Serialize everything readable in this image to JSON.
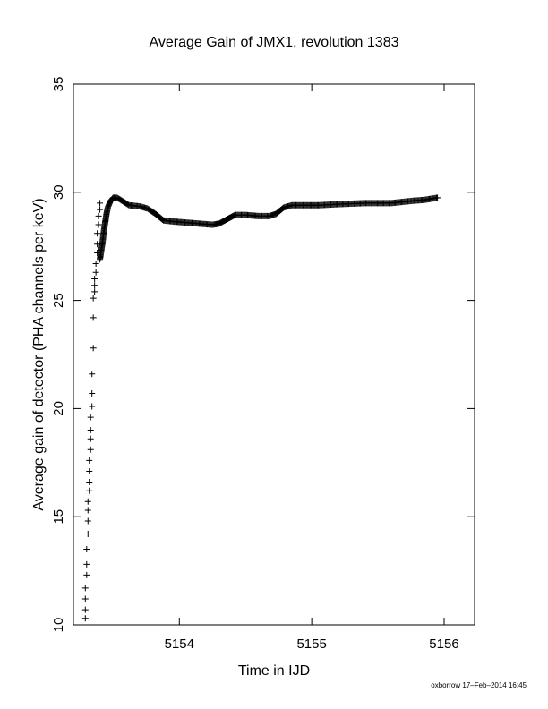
{
  "chart_data": {
    "type": "scatter",
    "title": "Average Gain of JMX1, revolution 1383",
    "xlabel": "Time in IJD",
    "ylabel": "Average gain of detector (PHA channels per keV)",
    "xlim": [
      5153.2,
      5156.23
    ],
    "ylim": [
      10,
      35
    ],
    "xticks": [
      5154,
      5155,
      5156
    ],
    "yticks": [
      10,
      15,
      20,
      25,
      30,
      35
    ],
    "grid": false,
    "marker": "+",
    "color": "#000000",
    "scatter_points": [
      [
        5153.29,
        10.3
      ],
      [
        5153.29,
        10.7
      ],
      [
        5153.29,
        11.2
      ],
      [
        5153.29,
        11.7
      ],
      [
        5153.3,
        12.3
      ],
      [
        5153.3,
        12.8
      ],
      [
        5153.3,
        13.5
      ],
      [
        5153.31,
        14.2
      ],
      [
        5153.31,
        14.8
      ],
      [
        5153.31,
        15.3
      ],
      [
        5153.31,
        15.7
      ],
      [
        5153.32,
        16.2
      ],
      [
        5153.32,
        16.6
      ],
      [
        5153.32,
        17.1
      ],
      [
        5153.32,
        17.6
      ],
      [
        5153.33,
        18.1
      ],
      [
        5153.33,
        18.6
      ],
      [
        5153.33,
        19.0
      ],
      [
        5153.33,
        19.6
      ],
      [
        5153.34,
        20.1
      ],
      [
        5153.34,
        20.7
      ],
      [
        5153.34,
        21.6
      ],
      [
        5153.35,
        22.8
      ],
      [
        5153.35,
        24.2
      ],
      [
        5153.35,
        25.1
      ],
      [
        5153.36,
        25.4
      ],
      [
        5153.36,
        25.7
      ],
      [
        5153.36,
        26.0
      ],
      [
        5153.37,
        26.3
      ],
      [
        5153.37,
        26.7
      ],
      [
        5153.38,
        27.2
      ],
      [
        5153.38,
        27.6
      ],
      [
        5153.38,
        28.1
      ],
      [
        5153.39,
        28.5
      ],
      [
        5153.39,
        28.9
      ],
      [
        5153.4,
        29.2
      ],
      [
        5153.4,
        29.5
      ]
    ],
    "curve_points": [
      [
        5153.4,
        26.9
      ],
      [
        5153.41,
        27.3
      ],
      [
        5153.42,
        27.7
      ],
      [
        5153.43,
        28.2
      ],
      [
        5153.44,
        28.6
      ],
      [
        5153.45,
        29.0
      ],
      [
        5153.46,
        29.3
      ],
      [
        5153.48,
        29.6
      ],
      [
        5153.5,
        29.75
      ],
      [
        5153.53,
        29.75
      ],
      [
        5153.57,
        29.6
      ],
      [
        5153.62,
        29.4
      ],
      [
        5153.7,
        29.35
      ],
      [
        5153.76,
        29.25
      ],
      [
        5153.82,
        29.0
      ],
      [
        5153.88,
        28.7
      ],
      [
        5153.95,
        28.65
      ],
      [
        5154.05,
        28.6
      ],
      [
        5154.15,
        28.55
      ],
      [
        5154.25,
        28.5
      ],
      [
        5154.3,
        28.55
      ],
      [
        5154.36,
        28.75
      ],
      [
        5154.42,
        28.95
      ],
      [
        5154.5,
        28.95
      ],
      [
        5154.6,
        28.9
      ],
      [
        5154.68,
        28.9
      ],
      [
        5154.73,
        29.0
      ],
      [
        5154.79,
        29.3
      ],
      [
        5154.85,
        29.4
      ],
      [
        5154.95,
        29.4
      ],
      [
        5155.05,
        29.4
      ],
      [
        5155.2,
        29.45
      ],
      [
        5155.4,
        29.5
      ],
      [
        5155.6,
        29.5
      ],
      [
        5155.75,
        29.6
      ],
      [
        5155.85,
        29.65
      ],
      [
        5155.95,
        29.75
      ]
    ],
    "footer": "oxborrow 17–Feb–2014 16:45"
  }
}
